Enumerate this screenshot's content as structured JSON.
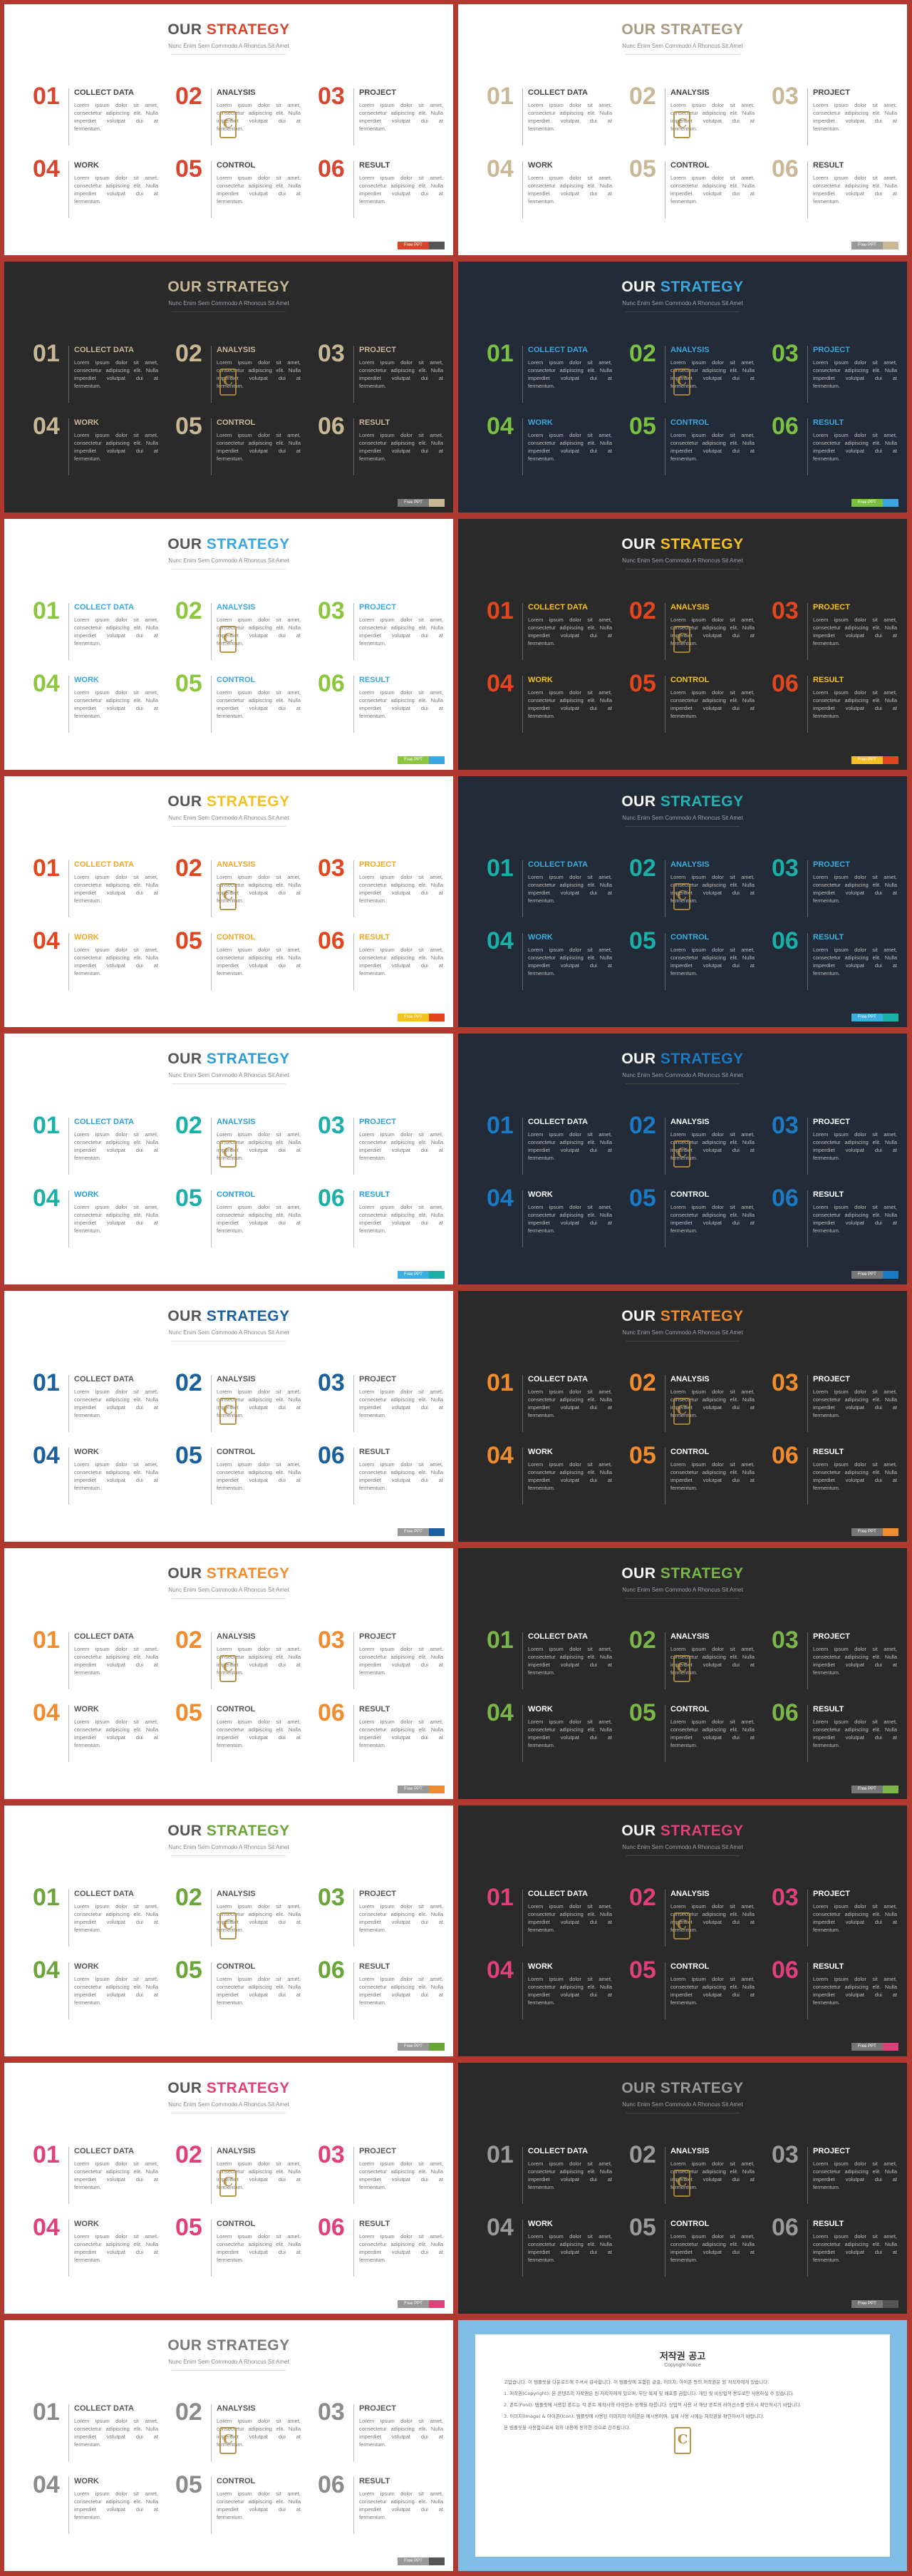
{
  "title_prefix": "OUR ",
  "title_highlight": "STRATEGY",
  "subtitle": "Nunc Enim Sem Commodo A Rhoncus Sit Amet",
  "body_text": "Lorem ipsum dolor sit amet, consectetur adipiscing elit. Nulla imperdiet volutpat dui at fermentum.",
  "items": [
    {
      "num": "01",
      "label": "COLLECT DATA"
    },
    {
      "num": "02",
      "label": "ANALYSIS"
    },
    {
      "num": "03",
      "label": "PROJECT"
    },
    {
      "num": "04",
      "label": "WORK"
    },
    {
      "num": "05",
      "label": "CONTROL"
    },
    {
      "num": "06",
      "label": "RESULT"
    }
  ],
  "footer_text": "Free  PPT",
  "logo_letter": "C",
  "slides": [
    {
      "theme": "light",
      "title": "#555555",
      "accent": "#d7452e",
      "label": "#444444",
      "num": "#d7452e",
      "f1": "#d7452e",
      "f2": "#555555"
    },
    {
      "theme": "light",
      "title": "#a89a80",
      "accent": "#a89a80",
      "label": "#444444",
      "num": "#c8b896",
      "f1": "#999999",
      "f2": "#c8b896"
    },
    {
      "theme": "dark",
      "title": "#c8b896",
      "accent": "#c8b896",
      "label": "#c8b896",
      "num": "#c8b896",
      "f1": "#777777",
      "f2": "#c8b896"
    },
    {
      "theme": "navy",
      "title": "#ffffff",
      "accent": "#3aa8de",
      "label": "#3aa8de",
      "num": "#7ac043",
      "f1": "#7ac043",
      "f2": "#3aa8de"
    },
    {
      "theme": "light",
      "title": "#555555",
      "accent": "#3aa8de",
      "label": "#3aa8de",
      "num": "#8cc63f",
      "f1": "#8cc63f",
      "f2": "#3aa8de"
    },
    {
      "theme": "dark",
      "title": "#ffffff",
      "accent": "#f5c021",
      "label": "#f5c021",
      "num": "#e2461f",
      "f1": "#f5c021",
      "f2": "#e2461f"
    },
    {
      "theme": "light",
      "title": "#555555",
      "accent": "#f5c021",
      "label": "#f5a623",
      "num": "#e2461f",
      "f1": "#f5c021",
      "f2": "#e2461f"
    },
    {
      "theme": "navy",
      "title": "#ffffff",
      "accent": "#24b3b3",
      "label": "#3ab0e0",
      "num": "#1ab0a8",
      "f1": "#3ab0e0",
      "f2": "#1ab0a8"
    },
    {
      "theme": "light",
      "title": "#555555",
      "accent": "#2a9fd6",
      "label": "#2a9fd6",
      "num": "#1ab0a8",
      "f1": "#3ab0e0",
      "f2": "#1ab0a8"
    },
    {
      "theme": "navy",
      "title": "#ffffff",
      "accent": "#1a7bc4",
      "label": "#ffffff",
      "num": "#1a7bc4",
      "f1": "#777777",
      "f2": "#1a7bc4"
    },
    {
      "theme": "light",
      "title": "#555555",
      "accent": "#1a5f9e",
      "label": "#555555",
      "num": "#1a5f9e",
      "f1": "#999999",
      "f2": "#1a5f9e"
    },
    {
      "theme": "dark",
      "title": "#ffffff",
      "accent": "#f08c2e",
      "label": "#ffffff",
      "num": "#f08c2e",
      "f1": "#777777",
      "f2": "#f08c2e"
    },
    {
      "theme": "light",
      "title": "#555555",
      "accent": "#f08c2e",
      "label": "#555555",
      "num": "#f08c2e",
      "f1": "#999999",
      "f2": "#f08c2e"
    },
    {
      "theme": "dark",
      "title": "#ffffff",
      "accent": "#7ab648",
      "label": "#ffffff",
      "num": "#7ab648",
      "f1": "#777777",
      "f2": "#7ab648"
    },
    {
      "theme": "light",
      "title": "#555555",
      "accent": "#6aa53a",
      "label": "#555555",
      "num": "#6aa53a",
      "f1": "#999999",
      "f2": "#6aa53a"
    },
    {
      "theme": "dark",
      "title": "#ffffff",
      "accent": "#e0407a",
      "label": "#ffffff",
      "num": "#e0407a",
      "f1": "#777777",
      "f2": "#e0407a"
    },
    {
      "theme": "light",
      "title": "#555555",
      "accent": "#e0407a",
      "label": "#555555",
      "num": "#e0407a",
      "f1": "#999999",
      "f2": "#e0407a"
    },
    {
      "theme": "dark",
      "title": "#9a9a9a",
      "accent": "#9a9a9a",
      "label": "#ffffff",
      "num": "#9a9a9a",
      "f1": "#777777",
      "f2": "#555555"
    },
    {
      "theme": "light",
      "title": "#7a7a7a",
      "accent": "#7a7a7a",
      "label": "#555555",
      "num": "#8a8a8a",
      "f1": "#999999",
      "f2": "#555555"
    }
  ],
  "notice": {
    "title": "저작권 공고",
    "subtitle": "Copyright Notice",
    "paragraphs": [
      "고맙습니다. 이 템플릿을 다운로드해 주셔서 감사합니다. 이 템플릿에 포함된 글꼴, 이미지, 아이콘 등의 저작권은 원 저작자에게 있습니다.",
      "1. 저작권(Copyright): 본 콘텐츠의 저작권은 원 저작자에게 있으며, 무단 복제 및 배포를 금합니다. 개인 및 비상업적 용도로만 사용하실 수 있습니다.",
      "2. 폰트(Font): 템플릿에 사용된 폰트는 각 폰트 제작사의 라이선스 정책을 따릅니다. 상업적 사용 시 해당 폰트의 라이선스를 반드시 확인하시기 바랍니다.",
      "3. 이미지(Image) & 아이콘(Icon): 템플릿에 사용된 이미지와 아이콘은 예시용이며, 실제 사용 시에는 저작권을 확인하시기 바랍니다.",
      "본 템플릿을 사용함으로써 위의 내용에 동의한 것으로 간주됩니다."
    ]
  }
}
